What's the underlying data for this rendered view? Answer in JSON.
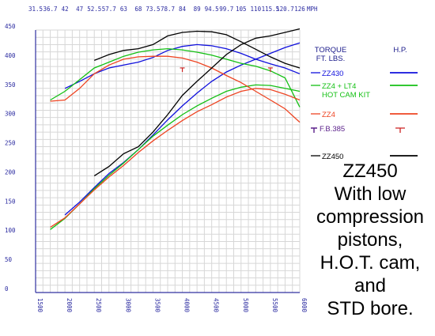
{
  "chart_data": {
    "type": "line",
    "x_axis": {
      "ticks": [
        {
          "value": 1500,
          "label": "1500"
        },
        {
          "value": 2000,
          "label": "2000"
        },
        {
          "value": 2500,
          "label": "2500"
        },
        {
          "value": 3000,
          "label": "3000"
        },
        {
          "value": 3500,
          "label": "3500"
        },
        {
          "value": 4000,
          "label": "4000"
        },
        {
          "value": 4500,
          "label": "4500"
        },
        {
          "value": 5000,
          "label": "5000"
        },
        {
          "value": 5500,
          "label": "5500"
        },
        {
          "value": 6000,
          "label": "6000"
        }
      ],
      "range": [
        1500,
        6000
      ]
    },
    "y_axis": {
      "ticks": [
        "0",
        "50",
        "100",
        "150",
        "200",
        "250",
        "300",
        "350",
        "400",
        "450"
      ],
      "range": [
        0,
        450
      ]
    },
    "top_axis": {
      "unit": "MPH",
      "ticks": [
        {
          "rpm": 1500,
          "label": "31.5"
        },
        {
          "rpm": 1750,
          "label": "36.7"
        },
        {
          "rpm": 2000,
          "label": "42"
        },
        {
          "rpm": 2250,
          "label": "47"
        },
        {
          "rpm": 2500,
          "label": "52.5"
        },
        {
          "rpm": 2750,
          "label": "57.7"
        },
        {
          "rpm": 3000,
          "label": "63"
        },
        {
          "rpm": 3250,
          "label": "68"
        },
        {
          "rpm": 3500,
          "label": "73.5"
        },
        {
          "rpm": 3750,
          "label": "78.7"
        },
        {
          "rpm": 4000,
          "label": "84"
        },
        {
          "rpm": 4250,
          "label": "89"
        },
        {
          "rpm": 4500,
          "label": "94.5"
        },
        {
          "rpm": 4750,
          "label": "99.7"
        },
        {
          "rpm": 5000,
          "label": "105"
        },
        {
          "rpm": 5250,
          "label": "110"
        },
        {
          "rpm": 5500,
          "label": "115.5"
        },
        {
          "rpm": 5750,
          "label": "120.7"
        },
        {
          "rpm": 6000,
          "label": "126"
        }
      ]
    },
    "grid": true,
    "legend_headers": {
      "left": "TORQUE\nFT. LBS.",
      "right": "H.P."
    },
    "series": [
      {
        "name": "ZZ430",
        "color": "#1010dd",
        "torque": [
          [
            2000,
            350
          ],
          [
            2250,
            362
          ],
          [
            2500,
            375
          ],
          [
            2750,
            385
          ],
          [
            3000,
            390
          ],
          [
            3250,
            395
          ],
          [
            3500,
            403
          ],
          [
            3750,
            415
          ],
          [
            4000,
            422
          ],
          [
            4250,
            425
          ],
          [
            4500,
            423
          ],
          [
            4750,
            418
          ],
          [
            5000,
            410
          ],
          [
            5250,
            400
          ],
          [
            5500,
            392
          ],
          [
            5750,
            385
          ],
          [
            6000,
            375
          ]
        ],
        "hp": [
          [
            2000,
            133
          ],
          [
            2250,
            155
          ],
          [
            2500,
            180
          ],
          [
            2750,
            204
          ],
          [
            3000,
            223
          ],
          [
            3250,
            245
          ],
          [
            3500,
            270
          ],
          [
            3750,
            296
          ],
          [
            4000,
            320
          ],
          [
            4250,
            342
          ],
          [
            4500,
            362
          ],
          [
            4750,
            378
          ],
          [
            5000,
            390
          ],
          [
            5250,
            400
          ],
          [
            5500,
            410
          ],
          [
            5750,
            420
          ],
          [
            6000,
            428
          ]
        ]
      },
      {
        "name": "ZZ4 + LT4\nHOT CAM KIT",
        "color": "#14c014",
        "torque": [
          [
            1750,
            330
          ],
          [
            2000,
            345
          ],
          [
            2250,
            365
          ],
          [
            2500,
            385
          ],
          [
            2750,
            395
          ],
          [
            3000,
            405
          ],
          [
            3250,
            412
          ],
          [
            3500,
            416
          ],
          [
            3750,
            418
          ],
          [
            4000,
            416
          ],
          [
            4250,
            412
          ],
          [
            4500,
            407
          ],
          [
            4750,
            400
          ],
          [
            5000,
            393
          ],
          [
            5250,
            388
          ],
          [
            5500,
            380
          ],
          [
            5750,
            368
          ],
          [
            6000,
            318
          ]
        ],
        "hp": [
          [
            1750,
            108
          ],
          [
            2000,
            127
          ],
          [
            2250,
            152
          ],
          [
            2500,
            178
          ],
          [
            2750,
            201
          ],
          [
            3000,
            222
          ],
          [
            3250,
            245
          ],
          [
            3500,
            268
          ],
          [
            3750,
            287
          ],
          [
            4000,
            305
          ],
          [
            4250,
            320
          ],
          [
            4500,
            333
          ],
          [
            4750,
            345
          ],
          [
            5000,
            352
          ],
          [
            5250,
            356
          ],
          [
            5500,
            355
          ],
          [
            5750,
            350
          ],
          [
            6000,
            345
          ]
        ]
      },
      {
        "name": "ZZ4",
        "color": "#ee4422",
        "torque": [
          [
            1750,
            328
          ],
          [
            2000,
            330
          ],
          [
            2250,
            350
          ],
          [
            2500,
            375
          ],
          [
            2750,
            390
          ],
          [
            3000,
            400
          ],
          [
            3250,
            404
          ],
          [
            3500,
            405
          ],
          [
            3750,
            405
          ],
          [
            4000,
            402
          ],
          [
            4250,
            395
          ],
          [
            4500,
            385
          ],
          [
            4750,
            372
          ],
          [
            5000,
            360
          ],
          [
            5250,
            345
          ],
          [
            5500,
            330
          ],
          [
            5750,
            315
          ],
          [
            6000,
            292
          ]
        ],
        "hp": [
          [
            1750,
            112
          ],
          [
            2000,
            128
          ],
          [
            2250,
            152
          ],
          [
            2500,
            176
          ],
          [
            2750,
            198
          ],
          [
            3000,
            218
          ],
          [
            3250,
            240
          ],
          [
            3500,
            260
          ],
          [
            3750,
            278
          ],
          [
            4000,
            295
          ],
          [
            4250,
            310
          ],
          [
            4500,
            322
          ],
          [
            4750,
            335
          ],
          [
            5000,
            345
          ],
          [
            5250,
            350
          ],
          [
            5500,
            348
          ],
          [
            5750,
            340
          ],
          [
            6000,
            330
          ]
        ]
      },
      {
        "name": "F.B.385",
        "color": "#cc2222",
        "markers": [
          [
            4000,
            385
          ],
          [
            5500,
            385
          ]
        ]
      },
      {
        "name": "ZZ450",
        "color": "#000000",
        "torque": [
          [
            2500,
            398
          ],
          [
            2750,
            408
          ],
          [
            3000,
            415
          ],
          [
            3250,
            418
          ],
          [
            3500,
            425
          ],
          [
            3750,
            440
          ],
          [
            4000,
            446
          ],
          [
            4250,
            448
          ],
          [
            4500,
            447
          ],
          [
            4750,
            442
          ],
          [
            5000,
            430
          ],
          [
            5250,
            417
          ],
          [
            5500,
            404
          ],
          [
            5750,
            393
          ],
          [
            6000,
            385
          ]
        ],
        "hp": [
          [
            2500,
            200
          ],
          [
            2750,
            216
          ],
          [
            3000,
            238
          ],
          [
            3250,
            250
          ],
          [
            3500,
            275
          ],
          [
            3750,
            305
          ],
          [
            4000,
            338
          ],
          [
            4250,
            362
          ],
          [
            4500,
            385
          ],
          [
            4750,
            408
          ],
          [
            5000,
            425
          ],
          [
            5250,
            436
          ],
          [
            5500,
            440
          ],
          [
            5750,
            446
          ],
          [
            6000,
            452
          ]
        ]
      }
    ]
  },
  "caption": [
    "ZZ450",
    "With low",
    "compression",
    "pistons,",
    "H.O.T. cam,",
    "and",
    "STD bore."
  ]
}
